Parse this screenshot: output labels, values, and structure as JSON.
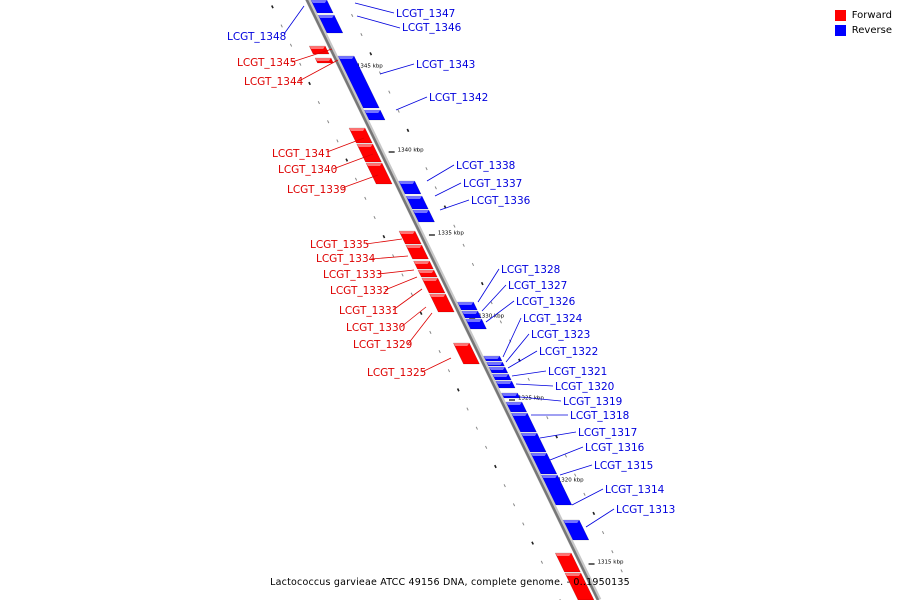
{
  "legend": {
    "forward_label": "Forward",
    "reverse_label": "Reverse",
    "forward_color": "#ff0000",
    "reverse_color": "#0000ff"
  },
  "caption": "Lactococcus garvieae ATCC 49156 DNA, complete genome. - 0..1950135",
  "scale_labels": [
    "1345 kbp",
    "1340 kbp",
    "1335 kbp",
    "1330 kbp",
    "1325 kbp",
    "1320 kbp",
    "1315 kbp"
  ],
  "genes": [
    {
      "name": "LCGT_1348",
      "strand": "reverse"
    },
    {
      "name": "LCGT_1347",
      "strand": "reverse"
    },
    {
      "name": "LCGT_1346",
      "strand": "reverse"
    },
    {
      "name": "LCGT_1345",
      "strand": "forward"
    },
    {
      "name": "LCGT_1344",
      "strand": "forward"
    },
    {
      "name": "LCGT_1343",
      "strand": "reverse"
    },
    {
      "name": "LCGT_1342",
      "strand": "reverse"
    },
    {
      "name": "LCGT_1341",
      "strand": "forward"
    },
    {
      "name": "LCGT_1340",
      "strand": "forward"
    },
    {
      "name": "LCGT_1339",
      "strand": "forward"
    },
    {
      "name": "LCGT_1338",
      "strand": "reverse"
    },
    {
      "name": "LCGT_1337",
      "strand": "reverse"
    },
    {
      "name": "LCGT_1336",
      "strand": "reverse"
    },
    {
      "name": "LCGT_1335",
      "strand": "forward"
    },
    {
      "name": "LCGT_1334",
      "strand": "forward"
    },
    {
      "name": "LCGT_1333",
      "strand": "forward"
    },
    {
      "name": "LCGT_1332",
      "strand": "forward"
    },
    {
      "name": "LCGT_1331",
      "strand": "forward"
    },
    {
      "name": "LCGT_1330",
      "strand": "forward"
    },
    {
      "name": "LCGT_1329",
      "strand": "forward"
    },
    {
      "name": "LCGT_1325",
      "strand": "forward"
    },
    {
      "name": "LCGT_1328",
      "strand": "reverse"
    },
    {
      "name": "LCGT_1327",
      "strand": "reverse"
    },
    {
      "name": "LCGT_1326",
      "strand": "reverse"
    },
    {
      "name": "LCGT_1324",
      "strand": "reverse"
    },
    {
      "name": "LCGT_1323",
      "strand": "reverse"
    },
    {
      "name": "LCGT_1322",
      "strand": "reverse"
    },
    {
      "name": "LCGT_1321",
      "strand": "reverse"
    },
    {
      "name": "LCGT_1320",
      "strand": "reverse"
    },
    {
      "name": "LCGT_1319",
      "strand": "reverse"
    },
    {
      "name": "LCGT_1318",
      "strand": "reverse"
    },
    {
      "name": "LCGT_1317",
      "strand": "reverse"
    },
    {
      "name": "LCGT_1316",
      "strand": "reverse"
    },
    {
      "name": "LCGT_1315",
      "strand": "reverse"
    },
    {
      "name": "LCGT_1314",
      "strand": "reverse"
    },
    {
      "name": "LCGT_1313",
      "strand": "reverse"
    }
  ]
}
